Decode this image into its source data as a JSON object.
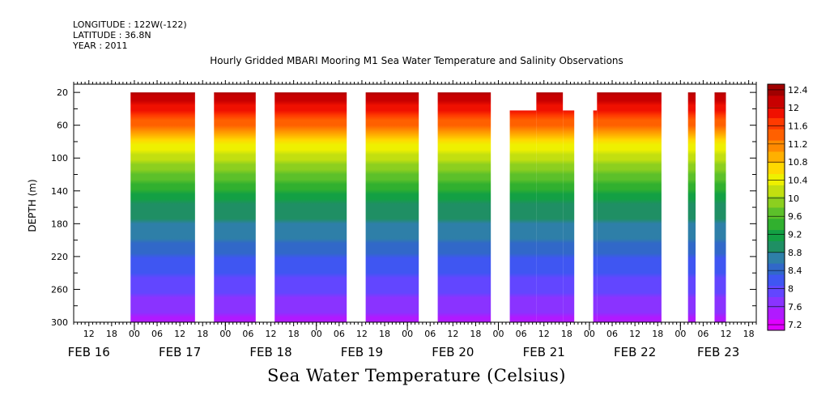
{
  "header": {
    "longitude": "LONGITUDE : 122W(-122)",
    "latitude": "LATITUDE : 36.8N",
    "year": "YEAR : 2011"
  },
  "chart_data": {
    "type": "heatmap",
    "title": "Hourly Gridded MBARI Mooring M1 Sea Water Temperature and Salinity Observations",
    "xlabel": "Sea Water Temperature (Celsius)",
    "ylabel": "DEPTH (m)",
    "x_units": "hours from FEB 16 00:00, 2011",
    "x_range": [
      8,
      188
    ],
    "y_range": [
      10,
      300
    ],
    "y_ticks": [
      20,
      60,
      100,
      140,
      180,
      220,
      260,
      300
    ],
    "hour_ticks": [
      {
        "t": 12,
        "label": "12"
      },
      {
        "t": 18,
        "label": "18"
      },
      {
        "t": 24,
        "label": "00"
      },
      {
        "t": 30,
        "label": "06"
      },
      {
        "t": 36,
        "label": "12"
      },
      {
        "t": 42,
        "label": "18"
      },
      {
        "t": 48,
        "label": "00"
      },
      {
        "t": 54,
        "label": "06"
      },
      {
        "t": 60,
        "label": "12"
      },
      {
        "t": 66,
        "label": "18"
      },
      {
        "t": 72,
        "label": "00"
      },
      {
        "t": 78,
        "label": "06"
      },
      {
        "t": 84,
        "label": "12"
      },
      {
        "t": 90,
        "label": "18"
      },
      {
        "t": 96,
        "label": "00"
      },
      {
        "t": 102,
        "label": "06"
      },
      {
        "t": 108,
        "label": "12"
      },
      {
        "t": 114,
        "label": "18"
      },
      {
        "t": 120,
        "label": "00"
      },
      {
        "t": 126,
        "label": "06"
      },
      {
        "t": 132,
        "label": "12"
      },
      {
        "t": 138,
        "label": "18"
      },
      {
        "t": 144,
        "label": "00"
      },
      {
        "t": 150,
        "label": "06"
      },
      {
        "t": 156,
        "label": "12"
      },
      {
        "t": 162,
        "label": "18"
      },
      {
        "t": 168,
        "label": "00"
      },
      {
        "t": 174,
        "label": "06"
      },
      {
        "t": 180,
        "label": "12"
      },
      {
        "t": 186,
        "label": "18"
      },
      {
        "t": 192,
        "label": "00"
      },
      {
        "t": 198,
        "label": "06"
      }
    ],
    "day_labels": [
      {
        "t": 12,
        "label": "FEB 16"
      },
      {
        "t": 36,
        "label": "FEB 17"
      },
      {
        "t": 60,
        "label": "FEB 18"
      },
      {
        "t": 84,
        "label": "FEB 19"
      },
      {
        "t": 108,
        "label": "FEB 20"
      },
      {
        "t": 132,
        "label": "FEB 21"
      },
      {
        "t": 156,
        "label": "FEB 22"
      },
      {
        "t": 178,
        "label": "FEB 23"
      }
    ],
    "data_segments": [
      {
        "start": 23,
        "end": 40,
        "top": 20
      },
      {
        "start": 45,
        "end": 56,
        "top": 20
      },
      {
        "start": 61,
        "end": 80,
        "top": 20
      },
      {
        "start": 85,
        "end": 99,
        "top": 20
      },
      {
        "start": 104,
        "end": 118,
        "top": 20
      },
      {
        "start": 123,
        "end": 130,
        "top": 42
      },
      {
        "start": 130,
        "end": 137,
        "top": 20
      },
      {
        "start": 137,
        "end": 140,
        "top": 42
      },
      {
        "start": 145,
        "end": 146,
        "top": 42
      },
      {
        "start": 146,
        "end": 163,
        "top": 20
      },
      {
        "start": 170,
        "end": 172,
        "top": 20
      },
      {
        "start": 177,
        "end": 180,
        "top": 20
      }
    ],
    "temperature_profile": [
      {
        "depth": 20,
        "temp": 12.2
      },
      {
        "depth": 40,
        "temp": 11.8
      },
      {
        "depth": 60,
        "temp": 11.3
      },
      {
        "depth": 80,
        "temp": 10.6
      },
      {
        "depth": 100,
        "temp": 10.1
      },
      {
        "depth": 120,
        "temp": 9.7
      },
      {
        "depth": 140,
        "temp": 9.3
      },
      {
        "depth": 160,
        "temp": 9.0
      },
      {
        "depth": 180,
        "temp": 8.8
      },
      {
        "depth": 200,
        "temp": 8.6
      },
      {
        "depth": 220,
        "temp": 8.4
      },
      {
        "depth": 240,
        "temp": 8.2
      },
      {
        "depth": 260,
        "temp": 8.0
      },
      {
        "depth": 280,
        "temp": 7.8
      },
      {
        "depth": 300,
        "temp": 7.5
      }
    ],
    "colorbar": {
      "levels": [
        7.2,
        7.6,
        8,
        8.4,
        8.8,
        9.2,
        9.6,
        10,
        10.4,
        10.8,
        11.2,
        11.6,
        12,
        12.4
      ],
      "labels": [
        "7.2",
        "7.6",
        "8",
        "8.4",
        "8.8",
        "9.2",
        "9.6",
        "10",
        "10.4",
        "10.8",
        "11.2",
        "11.6",
        "12",
        "12.4"
      ],
      "colors": [
        "#e000ff",
        "#b01aff",
        "#8a33ff",
        "#6246ff",
        "#3f56f2",
        "#3168c9",
        "#2e7fa8",
        "#1f8f64",
        "#13a044",
        "#31b02f",
        "#5cc02a",
        "#8ccf1f",
        "#c2df10",
        "#eef000",
        "#ffd800",
        "#ffb000",
        "#ff8a00",
        "#ff6000",
        "#ff3a00",
        "#f01000",
        "#c80000",
        "#a00000"
      ]
    }
  }
}
